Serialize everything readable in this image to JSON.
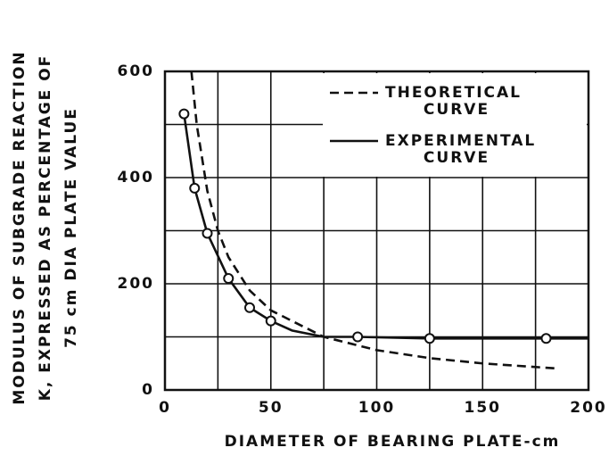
{
  "chart_data": {
    "type": "line",
    "xlabel": "DIAMETER OF BEARING PLATE-cm",
    "ylabel": [
      "MODULUS OF SUBGRADE REACTION",
      "K, EXPRESSED  AS PERCENTAGE OF",
      "75 cm  DIA  PLATE VALUE"
    ],
    "xlim": [
      0,
      200
    ],
    "ylim": [
      0,
      600
    ],
    "xticks": [
      0,
      50,
      100,
      150,
      200
    ],
    "yticks": [
      0,
      200,
      400,
      600
    ],
    "minor_xticks": [
      25,
      75,
      125,
      175
    ],
    "minor_yticks": [
      100,
      300,
      500
    ],
    "grid": true,
    "legend": "upper right",
    "series": [
      {
        "name": [
          "THEORETICAL",
          "CURVE"
        ],
        "color": "#111111",
        "dash": true,
        "x": [
          12.5,
          15,
          20,
          25,
          30,
          40,
          50,
          75,
          100,
          125,
          150,
          185
        ],
        "values": [
          600,
          500,
          375,
          300,
          250,
          187.5,
          150,
          100,
          75,
          60,
          50,
          40.5
        ]
      },
      {
        "name": [
          "EXPERIMENTAL",
          "CURVE"
        ],
        "color": "#111111",
        "dash": false,
        "x": [
          8,
          9,
          14,
          20,
          30,
          40,
          50,
          60,
          75,
          91,
          125,
          180,
          200
        ],
        "values": [
          525,
          520,
          380,
          295,
          210,
          155,
          130,
          112,
          100,
          100,
          97,
          97,
          97
        ],
        "points": {
          "x": [
            9,
            14,
            20,
            30,
            40,
            50,
            91,
            125,
            180
          ],
          "values": [
            520,
            380,
            295,
            210,
            155,
            130,
            100,
            97,
            97
          ]
        }
      }
    ]
  }
}
